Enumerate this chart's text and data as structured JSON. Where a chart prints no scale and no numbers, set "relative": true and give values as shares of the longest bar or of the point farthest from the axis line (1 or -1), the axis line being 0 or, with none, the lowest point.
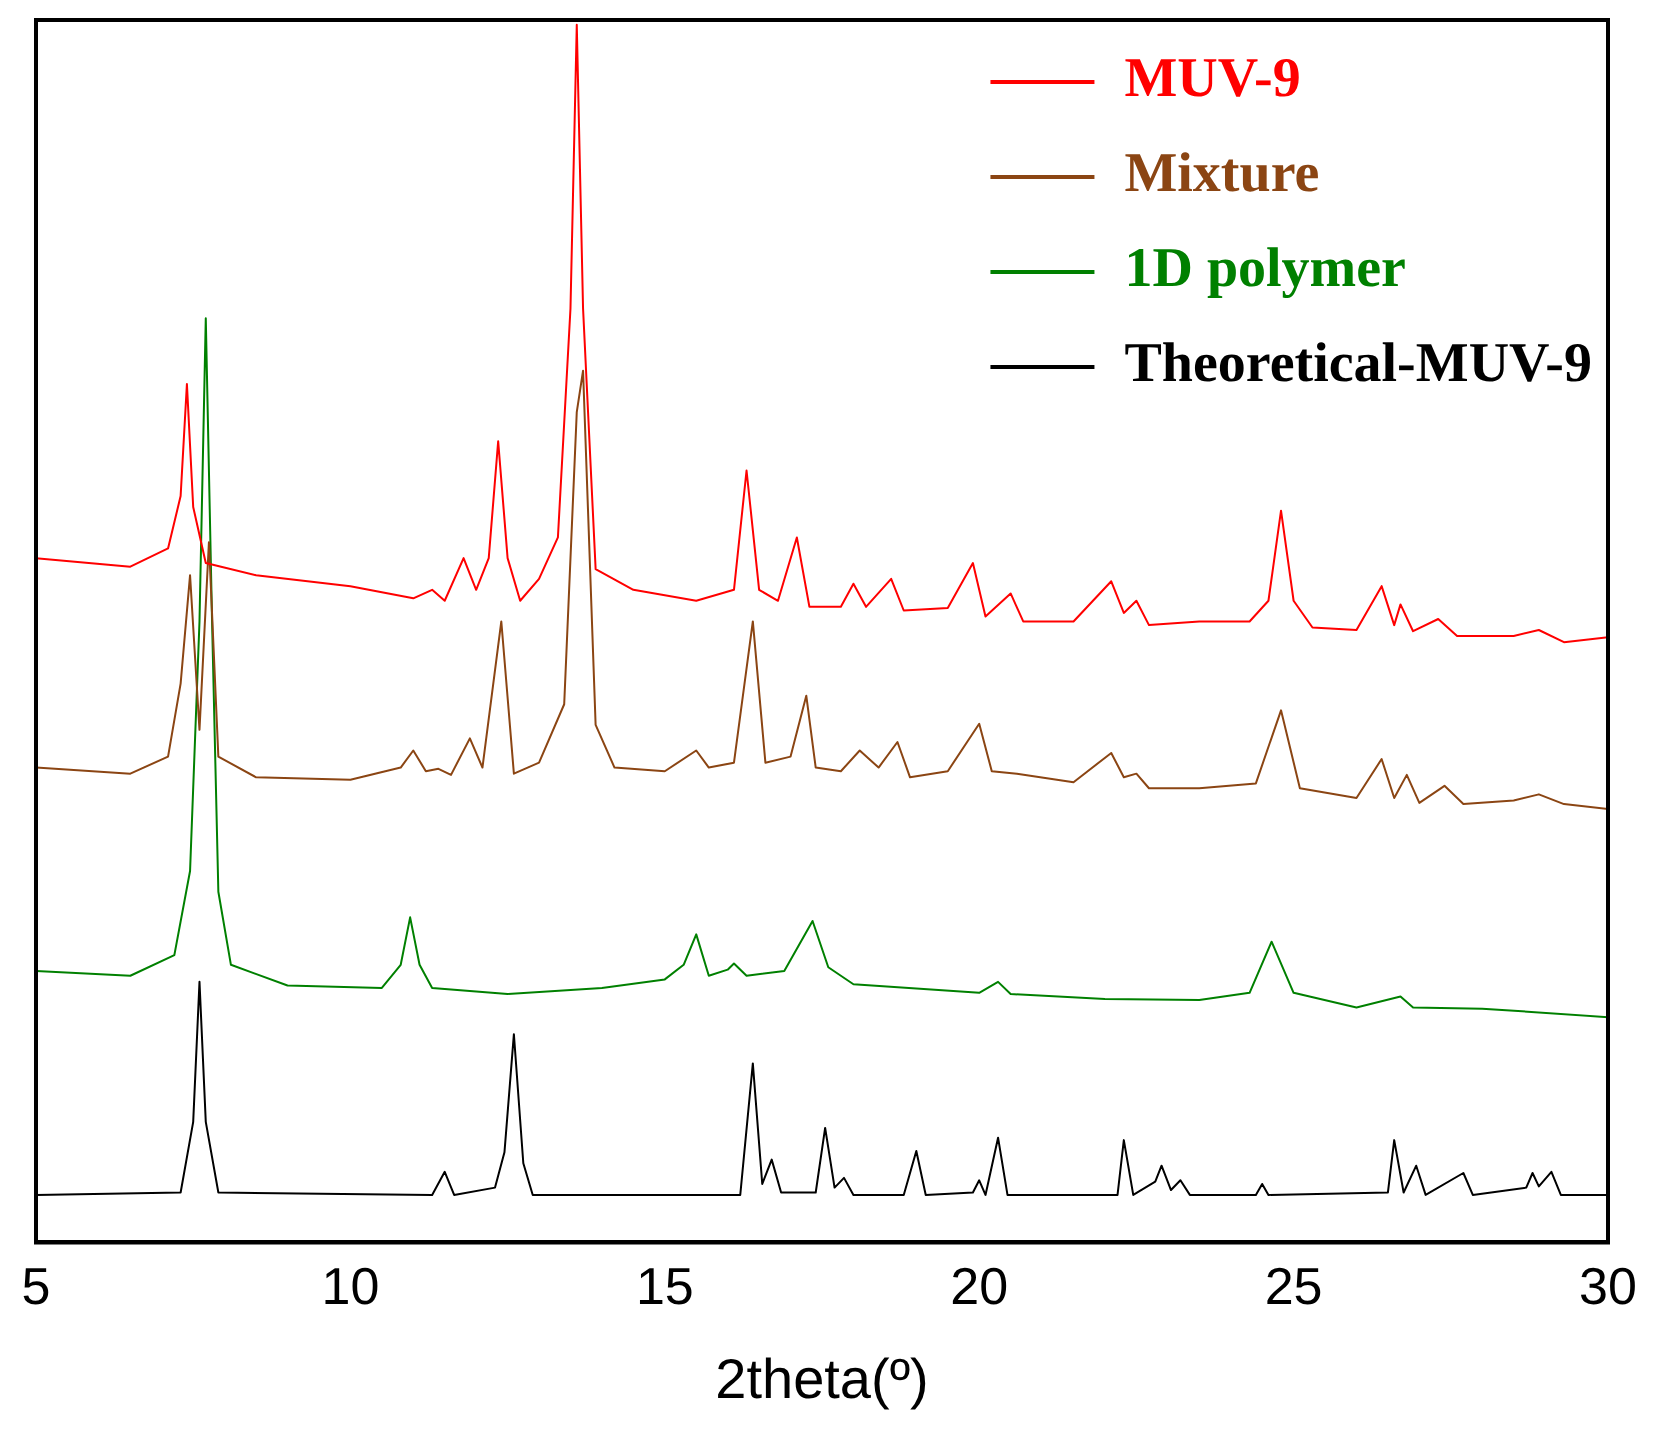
{
  "chart_data": {
    "type": "line",
    "relative": true,
    "xlabel": "2theta(º)",
    "xlim": [
      5,
      30
    ],
    "xticks": [
      5,
      10,
      15,
      20,
      25,
      30
    ],
    "grid": false,
    "legend": "top right",
    "marker": "none",
    "line_style": "solid",
    "series": [
      {
        "name": "MUV-9",
        "color": "#ff0000",
        "x": [
          5,
          6.5,
          7.1,
          7.3,
          7.4,
          7.5,
          7.7,
          8.5,
          10,
          11,
          11.3,
          11.5,
          11.8,
          12,
          12.2,
          12.35,
          12.5,
          12.7,
          13,
          13.3,
          13.5,
          13.6,
          13.7,
          13.9,
          14.5,
          15.5,
          16.1,
          16.3,
          16.5,
          16.8,
          17.1,
          17.3,
          17.8,
          18,
          18.2,
          18.6,
          18.8,
          19.5,
          19.9,
          20.1,
          20.5,
          20.7,
          21.5,
          22.1,
          22.3,
          22.5,
          22.7,
          23.5,
          24.3,
          24.6,
          24.8,
          25,
          25.3,
          26,
          26.4,
          26.6,
          26.7,
          26.9,
          27.3,
          27.6,
          28.5,
          28.9,
          29.3,
          30
        ],
        "values": [
          0.562,
          0.555,
          0.57,
          0.613,
          0.705,
          0.604,
          0.558,
          0.548,
          0.539,
          0.529,
          0.536,
          0.527,
          0.562,
          0.536,
          0.562,
          0.658,
          0.562,
          0.527,
          0.545,
          0.579,
          0.767,
          1,
          0.767,
          0.553,
          0.536,
          0.527,
          0.536,
          0.634,
          0.536,
          0.527,
          0.579,
          0.522,
          0.522,
          0.541,
          0.522,
          0.545,
          0.519,
          0.521,
          0.558,
          0.514,
          0.533,
          0.51,
          0.51,
          0.543,
          0.517,
          0.527,
          0.507,
          0.51,
          0.51,
          0.527,
          0.601,
          0.527,
          0.505,
          0.503,
          0.539,
          0.507,
          0.524,
          0.502,
          0.512,
          0.498,
          0.498,
          0.503,
          0.493,
          0.497
        ]
      },
      {
        "name": "Mixture",
        "color": "#8b4513",
        "x": [
          5,
          6.5,
          7.1,
          7.3,
          7.45,
          7.6,
          7.75,
          7.9,
          8.5,
          10,
          10.8,
          11,
          11.2,
          11.4,
          11.6,
          11.9,
          12.1,
          12.4,
          12.6,
          13,
          13.4,
          13.6,
          13.7,
          13.9,
          14.2,
          15,
          15.5,
          15.7,
          16.1,
          16.4,
          16.6,
          17,
          17.25,
          17.4,
          17.8,
          18.1,
          18.4,
          18.7,
          18.9,
          19.5,
          20,
          20.2,
          20.6,
          21.5,
          22.1,
          22.3,
          22.5,
          22.7,
          23.5,
          24.4,
          24.8,
          25.1,
          26,
          26.4,
          26.6,
          26.8,
          27,
          27.4,
          27.7,
          28.5,
          28.9,
          29.3,
          30
        ],
        "values": [
          0.39,
          0.385,
          0.399,
          0.459,
          0.548,
          0.421,
          0.575,
          0.399,
          0.382,
          0.38,
          0.39,
          0.404,
          0.387,
          0.389,
          0.384,
          0.414,
          0.39,
          0.51,
          0.385,
          0.394,
          0.442,
          0.682,
          0.716,
          0.425,
          0.39,
          0.387,
          0.404,
          0.39,
          0.394,
          0.51,
          0.394,
          0.399,
          0.449,
          0.39,
          0.387,
          0.404,
          0.39,
          0.411,
          0.382,
          0.387,
          0.426,
          0.387,
          0.385,
          0.378,
          0.402,
          0.382,
          0.385,
          0.373,
          0.373,
          0.377,
          0.437,
          0.373,
          0.365,
          0.397,
          0.365,
          0.384,
          0.361,
          0.375,
          0.36,
          0.363,
          0.368,
          0.36,
          0.356
        ]
      },
      {
        "name": "1D polymer",
        "color": "#008000",
        "x": [
          5,
          6.5,
          7.2,
          7.45,
          7.6,
          7.7,
          7.8,
          7.9,
          8.1,
          9,
          10.5,
          10.8,
          10.95,
          11.1,
          11.3,
          12.5,
          14,
          15,
          15.3,
          15.5,
          15.7,
          16,
          16.1,
          16.3,
          16.9,
          17.35,
          17.6,
          18,
          20,
          20.3,
          20.5,
          22,
          23.5,
          24.3,
          24.65,
          25,
          26,
          26.7,
          26.9,
          28,
          30
        ],
        "values": [
          0.223,
          0.219,
          0.236,
          0.305,
          0.51,
          0.759,
          0.51,
          0.288,
          0.228,
          0.211,
          0.209,
          0.228,
          0.267,
          0.228,
          0.209,
          0.204,
          0.209,
          0.216,
          0.228,
          0.253,
          0.219,
          0.224,
          0.229,
          0.219,
          0.223,
          0.264,
          0.226,
          0.212,
          0.205,
          0.214,
          0.204,
          0.2,
          0.199,
          0.205,
          0.247,
          0.205,
          0.193,
          0.202,
          0.193,
          0.192,
          0.185
        ]
      },
      {
        "name": "Theoretical-MUV-9",
        "color": "#000000",
        "x": [
          5,
          7.3,
          7.5,
          7.6,
          7.7,
          7.9,
          11.3,
          11.5,
          11.65,
          12.3,
          12.45,
          12.6,
          12.75,
          12.9,
          16.2,
          16.4,
          16.55,
          16.7,
          16.85,
          17.4,
          17.55,
          17.7,
          17.85,
          18,
          18.8,
          19,
          19.15,
          19.9,
          20,
          20.1,
          20.3,
          20.45,
          22.2,
          22.3,
          22.45,
          22.8,
          22.9,
          23.05,
          23.2,
          23.35,
          24.4,
          24.5,
          24.6,
          26.5,
          26.6,
          26.75,
          26.95,
          27.1,
          27.7,
          27.85,
          28.7,
          28.8,
          28.9,
          29.1,
          29.25,
          30
        ],
        "values": [
          0.039,
          0.041,
          0.099,
          0.214,
          0.099,
          0.041,
          0.039,
          0.058,
          0.039,
          0.045,
          0.074,
          0.171,
          0.065,
          0.039,
          0.039,
          0.147,
          0.048,
          0.068,
          0.041,
          0.041,
          0.094,
          0.045,
          0.053,
          0.039,
          0.039,
          0.075,
          0.039,
          0.041,
          0.051,
          0.039,
          0.086,
          0.039,
          0.039,
          0.084,
          0.039,
          0.05,
          0.063,
          0.043,
          0.051,
          0.039,
          0.039,
          0.048,
          0.039,
          0.041,
          0.084,
          0.041,
          0.063,
          0.039,
          0.057,
          0.039,
          0.045,
          0.057,
          0.046,
          0.058,
          0.039,
          0.039
        ]
      }
    ]
  }
}
